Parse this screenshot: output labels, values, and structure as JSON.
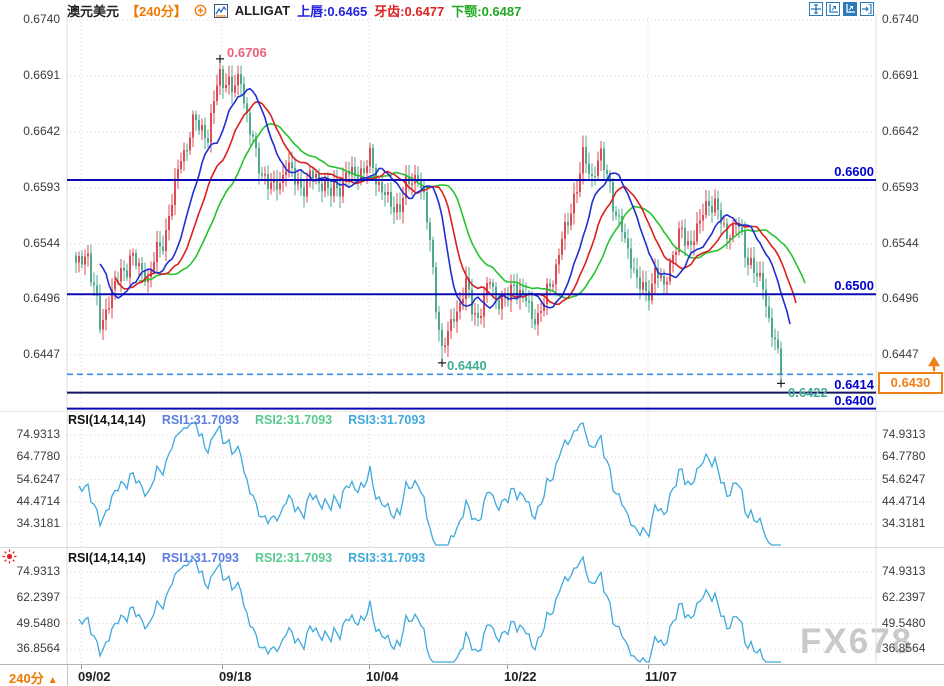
{
  "header": {
    "symbol": "澳元美元",
    "period_tag": "【240分】",
    "indicator": "ALLIGAT",
    "lips_label": "上唇:0.6465",
    "teeth_label": "牙齿:0.6477",
    "jaw_label": "下颚:0.6487"
  },
  "toolbar": {
    "icons": [
      "crosshair",
      "fit-y-axis",
      "fit-x-axis",
      "exit-chart"
    ]
  },
  "rsi_header": {
    "name": "RSI(14,14,14)",
    "rsi1": "RSI1:31.7093",
    "rsi2": "RSI2:31.7093",
    "rsi3": "RSI3:31.7093"
  },
  "bottom": {
    "period": "240分",
    "dates": [
      "09/02",
      "09/18",
      "10/04",
      "10/22",
      "11/07"
    ]
  },
  "watermark": "FX678",
  "colors": {
    "candle_up": "#dd4b55",
    "candle_down": "#4fa98d",
    "alligator_lips": "#1f2fd0",
    "alligator_teeth": "#dc2020",
    "alligator_jaw": "#27c32f",
    "hline_navy": "#0a0ab4",
    "hline_dark": "#15155f",
    "dashed_line": "#3b8fe0",
    "label_blue": "#0000d0",
    "orange": "#f08018",
    "annotation_high": "#ee5f78",
    "annotation_low": "#3fae92",
    "rsi_line": "#3fa9dc",
    "grid": "#d4d4d4",
    "axis_text": "#3c3c3c",
    "watermark": "#c9c9c9",
    "toolbar_blue": "#2b7bb9"
  },
  "chart_data": [
    {
      "type": "candlestick",
      "panel": "main",
      "title": "澳元美元 【240分】 + ALLIGATOR",
      "x_labels": [
        "09/02",
        "09/18",
        "10/04",
        "10/22",
        "11/07"
      ],
      "y_ticks": [
        "0.6740",
        "0.6691",
        "0.6642",
        "0.6593",
        "0.6544",
        "0.6496",
        "0.6447"
      ],
      "ylim": [
        0.6395,
        0.6745
      ],
      "grid": true,
      "hlines": [
        {
          "price": 0.66,
          "label": "0.6600",
          "style": "solid"
        },
        {
          "price": 0.65,
          "label": "0.6500",
          "style": "solid"
        },
        {
          "price": 0.643,
          "label": "0.6430",
          "style": "dashed",
          "badge": "orange-alert"
        },
        {
          "price": 0.6414,
          "label": "0.6414",
          "style": "solid",
          "emphasis": true
        },
        {
          "price": 0.64,
          "label": "0.6400",
          "style": "solid"
        }
      ],
      "annotations": [
        {
          "text": "0.6706",
          "price": 0.6706,
          "bar": 48,
          "role": "swing-high"
        },
        {
          "text": "0.6440",
          "price": 0.644,
          "bar": 122,
          "role": "swing-low"
        },
        {
          "text": "0.6422",
          "price": 0.6422,
          "bar": 235,
          "role": "latest-low"
        }
      ],
      "alligator": {
        "lips": {
          "label": "上唇",
          "value": 0.6465,
          "period": 5,
          "shift": 3
        },
        "teeth": {
          "label": "牙齿",
          "value": 0.6477,
          "period": 8,
          "shift": 5
        },
        "jaw": {
          "label": "下颚",
          "value": 0.6487,
          "period": 13,
          "shift": 8
        }
      },
      "bars": 236,
      "high": 0.6706,
      "low": 0.644,
      "last_close": 0.643,
      "last_low": 0.6422,
      "close_keyframes": [
        [
          0,
          0.6524
        ],
        [
          4,
          0.6536
        ],
        [
          8,
          0.6472
        ],
        [
          12,
          0.6502
        ],
        [
          18,
          0.6532
        ],
        [
          24,
          0.6515
        ],
        [
          30,
          0.6555
        ],
        [
          35,
          0.662
        ],
        [
          40,
          0.6652
        ],
        [
          44,
          0.6638
        ],
        [
          48,
          0.6695
        ],
        [
          52,
          0.6678
        ],
        [
          55,
          0.669
        ],
        [
          58,
          0.664
        ],
        [
          62,
          0.6606
        ],
        [
          66,
          0.659
        ],
        [
          70,
          0.6612
        ],
        [
          75,
          0.6594
        ],
        [
          80,
          0.6604
        ],
        [
          85,
          0.6588
        ],
        [
          90,
          0.6603
        ],
        [
          95,
          0.6608
        ],
        [
          98,
          0.6616
        ],
        [
          102,
          0.6592
        ],
        [
          106,
          0.6572
        ],
        [
          110,
          0.6592
        ],
        [
          114,
          0.6606
        ],
        [
          116,
          0.6585
        ],
        [
          119,
          0.652
        ],
        [
          122,
          0.6448
        ],
        [
          126,
          0.6482
        ],
        [
          130,
          0.6505
        ],
        [
          134,
          0.6478
        ],
        [
          138,
          0.6512
        ],
        [
          142,
          0.6488
        ],
        [
          146,
          0.651
        ],
        [
          150,
          0.6492
        ],
        [
          154,
          0.6478
        ],
        [
          158,
          0.6508
        ],
        [
          162,
          0.6545
        ],
        [
          166,
          0.6585
        ],
        [
          169,
          0.6618
        ],
        [
          172,
          0.6605
        ],
        [
          175,
          0.662
        ],
        [
          178,
          0.6595
        ],
        [
          181,
          0.656
        ],
        [
          184,
          0.654
        ],
        [
          187,
          0.6512
        ],
        [
          190,
          0.6498
        ],
        [
          193,
          0.652
        ],
        [
          196,
          0.6506
        ],
        [
          199,
          0.6538
        ],
        [
          202,
          0.6552
        ],
        [
          205,
          0.6545
        ],
        [
          208,
          0.6562
        ],
        [
          211,
          0.6585
        ],
        [
          214,
          0.657
        ],
        [
          217,
          0.6552
        ],
        [
          220,
          0.6562
        ],
        [
          223,
          0.654
        ],
        [
          226,
          0.652
        ],
        [
          229,
          0.6506
        ],
        [
          232,
          0.6468
        ],
        [
          235,
          0.643
        ]
      ]
    },
    {
      "type": "line",
      "panel": "rsi1",
      "name": "RSI(14,14,14)",
      "series": [
        {
          "name": "RSI1",
          "last": 31.7093
        },
        {
          "name": "RSI2",
          "last": 31.7093
        },
        {
          "name": "RSI3",
          "last": 31.7093
        }
      ],
      "y_ticks": [
        "74.9313",
        "64.7780",
        "54.6247",
        "44.4714",
        "34.3181"
      ],
      "grid": true
    },
    {
      "type": "line",
      "panel": "rsi2",
      "name": "RSI(14,14,14)",
      "series": [
        {
          "name": "RSI1",
          "last": 31.7093
        },
        {
          "name": "RSI2",
          "last": 31.7093
        },
        {
          "name": "RSI3",
          "last": 31.7093
        }
      ],
      "y_ticks": [
        "74.9313",
        "62.2397",
        "49.5480",
        "36.8564"
      ],
      "grid": true
    }
  ]
}
